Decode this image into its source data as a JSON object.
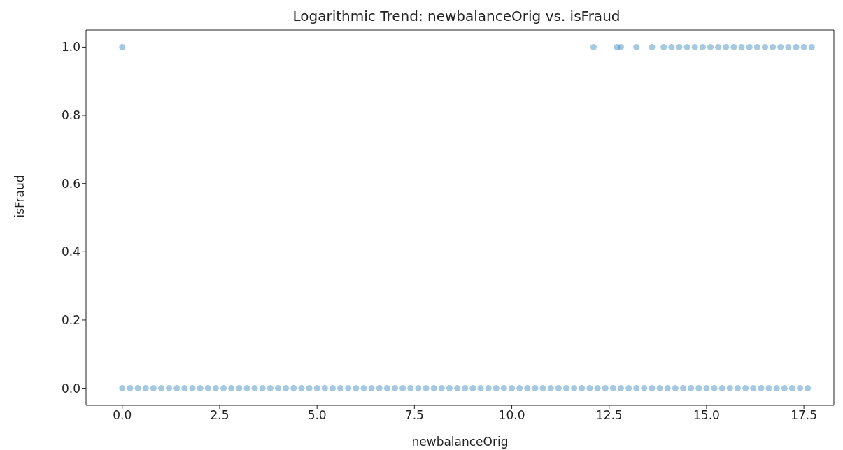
{
  "chart_data": {
    "type": "scatter",
    "title": "Logarithmic Trend: newbalanceOrig vs. isFraud",
    "xlabel": "newbalanceOrig",
    "ylabel": "isFraud",
    "marker": "circle",
    "grid": false,
    "xlim": [
      -0.93,
      18.27
    ],
    "ylim": [
      -0.05,
      1.05
    ],
    "xticks": [
      {
        "value": 0,
        "label": "0.0"
      },
      {
        "value": 2.5,
        "label": "2.5"
      },
      {
        "value": 5,
        "label": "5.0"
      },
      {
        "value": 7.5,
        "label": "7.5"
      },
      {
        "value": 10,
        "label": "10.0"
      },
      {
        "value": 12.5,
        "label": "12.5"
      },
      {
        "value": 15,
        "label": "15.0"
      },
      {
        "value": 17.5,
        "label": "17.5"
      }
    ],
    "yticks": [
      {
        "value": 0,
        "label": "0.0"
      },
      {
        "value": 0.2,
        "label": "0.2"
      },
      {
        "value": 0.4,
        "label": "0.4"
      },
      {
        "value": 0.6,
        "label": "0.6"
      },
      {
        "value": 0.8,
        "label": "0.8"
      },
      {
        "value": 1,
        "label": "1.0"
      }
    ],
    "series": [
      {
        "color": "#1f77b4",
        "x": [
          0,
          0.2,
          0.4,
          0.6,
          0.8,
          1,
          1.2,
          1.4,
          1.6,
          1.8,
          2,
          2.2,
          2.4,
          2.6,
          2.8,
          3,
          3.2,
          3.4,
          3.6,
          3.8,
          4,
          4.2,
          4.4,
          4.6,
          4.8,
          5,
          5.2,
          5.4,
          5.6,
          5.8,
          6,
          6.2,
          6.4,
          6.6,
          6.8,
          7,
          7.2,
          7.4,
          7.6,
          7.8,
          8,
          8.2,
          8.4,
          8.6,
          8.8,
          9,
          9.2,
          9.4,
          9.6,
          9.8,
          10,
          10.2,
          10.4,
          10.6,
          10.8,
          11,
          11.2,
          11.4,
          11.6,
          11.8,
          12,
          12.2,
          12.4,
          12.6,
          12.8,
          13,
          13.2,
          13.4,
          13.6,
          13.8,
          14,
          14.2,
          14.4,
          14.6,
          14.8,
          15,
          15.2,
          15.4,
          15.6,
          15.8,
          16,
          16.2,
          16.4,
          16.6,
          16.8,
          17,
          17.2,
          17.4,
          17.6
        ],
        "values": [
          0,
          0,
          0,
          0,
          0,
          0,
          0,
          0,
          0,
          0,
          0,
          0,
          0,
          0,
          0,
          0,
          0,
          0,
          0,
          0,
          0,
          0,
          0,
          0,
          0,
          0,
          0,
          0,
          0,
          0,
          0,
          0,
          0,
          0,
          0,
          0,
          0,
          0,
          0,
          0,
          0,
          0,
          0,
          0,
          0,
          0,
          0,
          0,
          0,
          0,
          0,
          0,
          0,
          0,
          0,
          0,
          0,
          0,
          0,
          0,
          0,
          0,
          0,
          0,
          0,
          0,
          0,
          0,
          0,
          0,
          0,
          0,
          0,
          0,
          0,
          0,
          0,
          0,
          0,
          0,
          0,
          0,
          0,
          0,
          0,
          0,
          0,
          0,
          0
        ]
      },
      {
        "color": "#1f77b4",
        "x": [
          0,
          12.1,
          12.7,
          12.8,
          13.2,
          13.6,
          13.9,
          14.1,
          14.3,
          14.5,
          14.7,
          14.9,
          15.1,
          15.3,
          15.5,
          15.7,
          15.9,
          16.1,
          16.3,
          16.5,
          16.7,
          16.9,
          17.1,
          17.3,
          17.5,
          17.7
        ],
        "values": [
          1,
          1,
          1,
          1,
          1,
          1,
          1,
          1,
          1,
          1,
          1,
          1,
          1,
          1,
          1,
          1,
          1,
          1,
          1,
          1,
          1,
          1,
          1,
          1,
          1,
          1
        ]
      }
    ]
  }
}
